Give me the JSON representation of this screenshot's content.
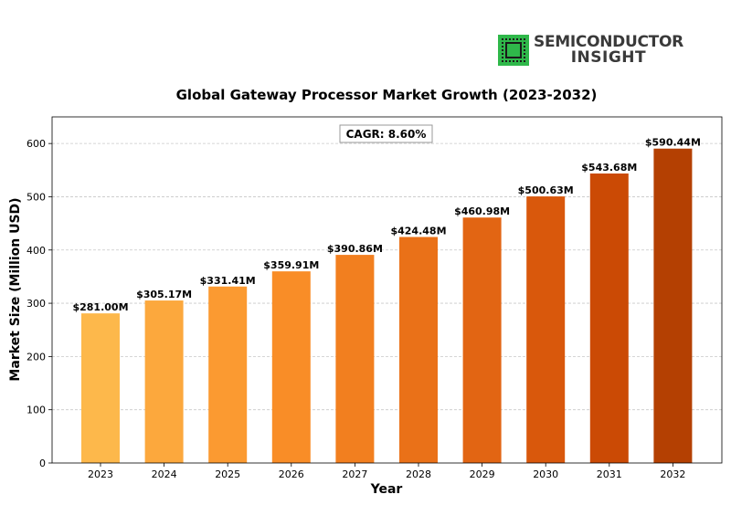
{
  "brand": {
    "name_line1": "SEMICONDUCTOR",
    "name_line2": "INSIGHT",
    "chip_color": "#2fb84a"
  },
  "chart_data": {
    "type": "bar",
    "title": "Global Gateway Processor Market Growth (2023-2032)",
    "xlabel": "Year",
    "ylabel": "Market Size (Million USD)",
    "ylim": [
      0,
      650
    ],
    "yticks": [
      0,
      100,
      200,
      300,
      400,
      500,
      600
    ],
    "grid": "horizontal dashed",
    "annotation": "CAGR: 8.60%",
    "categories": [
      "2023",
      "2024",
      "2025",
      "2026",
      "2027",
      "2028",
      "2029",
      "2030",
      "2031",
      "2032"
    ],
    "values": [
      281.0,
      305.17,
      331.41,
      359.91,
      390.86,
      424.48,
      460.98,
      500.63,
      543.68,
      590.44
    ],
    "data_labels": [
      "$281.00M",
      "$305.17M",
      "$331.41M",
      "$359.91M",
      "$390.86M",
      "$424.48M",
      "$460.98M",
      "$500.63M",
      "$543.68M",
      "$590.44M"
    ],
    "colors": [
      "#fdb84b",
      "#fca83d",
      "#fb9a31",
      "#f98d27",
      "#f27f1f",
      "#ea7118",
      "#e26513",
      "#d9580c",
      "#cb4a05",
      "#b44002"
    ]
  }
}
